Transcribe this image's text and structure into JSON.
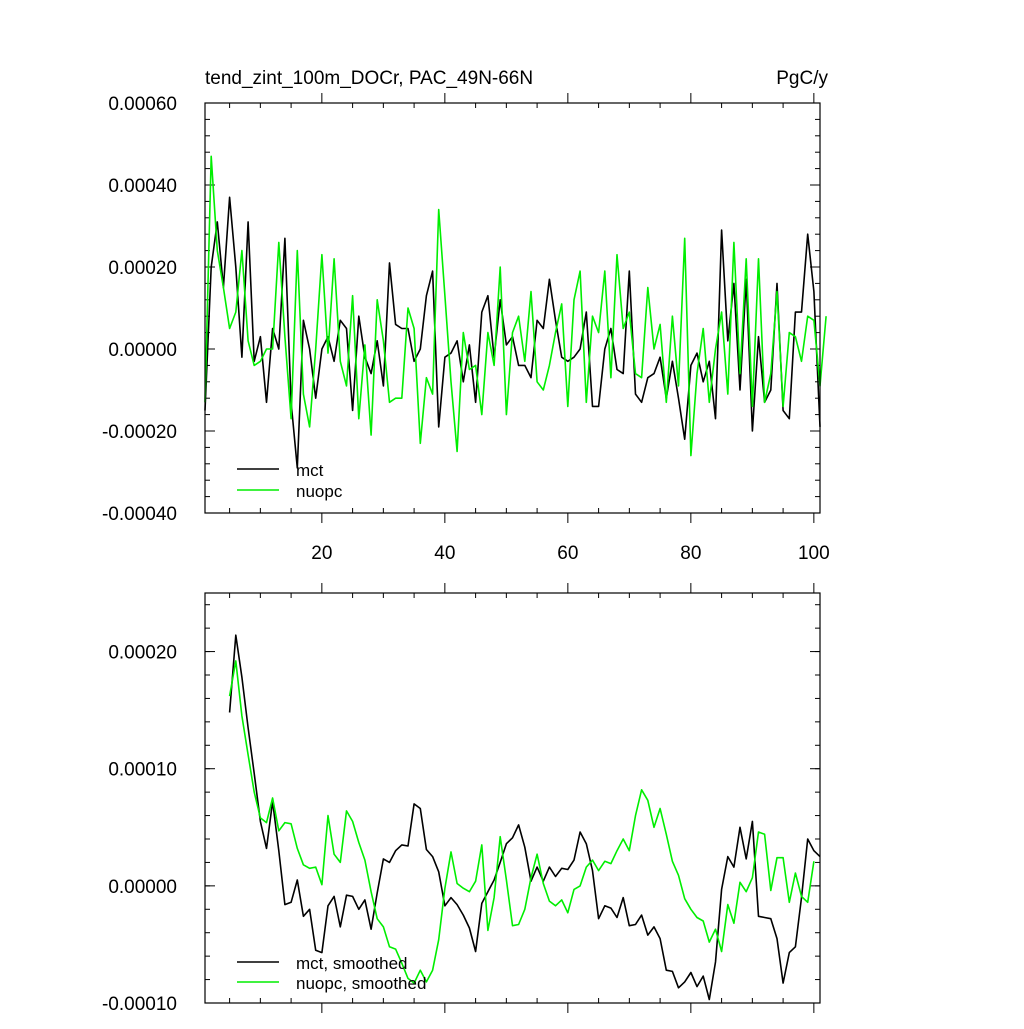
{
  "chart_data": [
    {
      "type": "line",
      "title": "tend_zint_100m_DOCr, PAC_49N-66N",
      "units": "PgC/y",
      "xlabel": "",
      "ylabel": "",
      "xlim": [
        1,
        101
      ],
      "ylim": [
        -0.0004,
        0.0006
      ],
      "x_ticks": [
        20,
        40,
        60,
        80,
        100
      ],
      "x_tick_labels": [
        "20",
        "40",
        "60",
        "80",
        "100"
      ],
      "y_ticks": [
        -0.0004,
        -0.0002,
        0.0,
        0.0002,
        0.0004,
        0.0006
      ],
      "y_tick_labels": [
        "-0.00040",
        "-0.00020",
        "0.00000",
        "0.00020",
        "0.00040",
        "0.00060"
      ],
      "grid": false,
      "legend_position": "bottom-left",
      "x_start": 1,
      "series": [
        {
          "name": "mct",
          "color": "#000000",
          "values": [
            -0.00015,
            0.0002,
            0.00031,
            0.00015,
            0.00037,
            0.0002,
            -2e-05,
            0.00031,
            -3e-05,
            3e-05,
            -0.00013,
            5e-05,
            0.0,
            0.00027,
            -0.00013,
            -0.00029,
            7e-05,
            0.0,
            -0.00012,
            0.0,
            3e-05,
            -3e-05,
            7e-05,
            5e-05,
            -0.00015,
            8e-05,
            -2e-05,
            -6e-05,
            2e-05,
            -9e-05,
            0.00021,
            6e-05,
            5e-05,
            5e-05,
            -3e-05,
            0.0,
            0.00013,
            0.00019,
            -0.00019,
            -2e-05,
            -1e-05,
            2e-05,
            -8e-05,
            1e-05,
            -0.00013,
            9e-05,
            0.00013,
            -2e-05,
            0.00012,
            1e-05,
            3e-05,
            -4e-05,
            -4e-05,
            -7e-05,
            7e-05,
            5e-05,
            0.00017,
            7e-05,
            -2e-05,
            -3e-05,
            -2e-05,
            0.0,
            9e-05,
            -0.00014,
            -0.00014,
            0.0,
            5e-05,
            -5e-05,
            -6e-05,
            0.00019,
            -0.00011,
            -0.00013,
            -7e-05,
            -6e-05,
            -2e-05,
            -0.00012,
            -3e-05,
            -0.00012,
            -0.00022,
            -4e-05,
            -1e-05,
            -8e-05,
            -3e-05,
            -0.00017,
            0.00029,
            2e-05,
            0.00016,
            -0.0001,
            0.00017,
            -0.0002,
            3e-05,
            -0.00013,
            -0.0001,
            0.00016,
            -0.00015,
            -0.00017,
            9e-05,
            9e-05,
            0.00028,
            0.00014,
            -0.00019
          ]
        },
        {
          "name": "nuopc",
          "color": "#00ee00",
          "values": [
            -0.00013,
            0.00047,
            0.00024,
            0.00015,
            5e-05,
            9e-05,
            0.00024,
            2e-05,
            -4e-05,
            -3e-05,
            0.0,
            0.0,
            0.00026,
            3e-05,
            -0.00017,
            0.00024,
            -0.00011,
            -0.00019,
            0.0,
            0.00023,
            -1e-05,
            0.00022,
            -3e-05,
            -9e-05,
            0.00013,
            -0.00017,
            1e-05,
            -0.00021,
            0.00012,
            2e-05,
            -0.00013,
            -0.00012,
            -0.00012,
            0.0001,
            5e-05,
            -0.00023,
            -7e-05,
            -0.00011,
            0.00034,
            0.00013,
            -8e-05,
            -0.00025,
            4e-05,
            -5e-05,
            -4e-05,
            -0.00016,
            4e-05,
            -4e-05,
            0.0002,
            -0.00016,
            4e-05,
            8e-05,
            -3e-05,
            0.00014,
            -8e-05,
            -0.0001,
            -4e-05,
            4e-05,
            0.00011,
            -0.00014,
            0.00012,
            0.00019,
            -0.00013,
            8e-05,
            4e-05,
            0.00019,
            -7e-05,
            0.00023,
            5e-05,
            9e-05,
            -6e-05,
            -7e-05,
            0.00015,
            0.0,
            6e-05,
            -0.00013,
            8e-05,
            -9e-05,
            0.00027,
            -0.00026,
            -6e-05,
            5e-05,
            -0.00013,
            0.0,
            9e-05,
            -0.00011,
            0.00026,
            -6e-05,
            0.00022,
            -0.00014,
            0.00022,
            -0.00013,
            -6e-05,
            0.00014,
            -0.00014,
            4e-05,
            3e-05,
            -3e-05,
            8e-05,
            7e-05,
            -9e-05,
            8e-05
          ]
        }
      ]
    },
    {
      "type": "line",
      "title": "",
      "xlabel": "",
      "ylabel": "",
      "xlim": [
        1,
        101
      ],
      "ylim": [
        -0.0001,
        0.00025
      ],
      "x_ticks": [
        20,
        40,
        60,
        80,
        100
      ],
      "x_tick_labels": [],
      "y_ticks": [
        -0.0001,
        0.0,
        0.0001,
        0.0002
      ],
      "y_tick_labels": [
        "-0.00010",
        "0.00000",
        "0.00010",
        "0.00020"
      ],
      "grid": false,
      "legend_position": "bottom-left",
      "x_start": 5,
      "series": [
        {
          "name": "mct, smoothed",
          "color": "#000000",
          "values": [
            0.000148,
            0.000214,
            0.000178,
            0.000135,
            9.6e-05,
            5.5e-05,
            3.2e-05,
            7.2e-05,
            3e-05,
            -1.6e-05,
            -1.4e-05,
            5e-06,
            -2.6e-05,
            -2e-05,
            -5.5e-05,
            -5.7e-05,
            -1.7e-05,
            -9e-06,
            -3.5e-05,
            -8e-06,
            -9e-06,
            -2e-05,
            -1.2e-05,
            -3.7e-05,
            -6e-06,
            2.3e-05,
            2e-05,
            3e-05,
            3.5e-05,
            3.4e-05,
            7e-05,
            6.6e-05,
            3.1e-05,
            2.5e-05,
            1.2e-05,
            -1.7e-05,
            -1e-05,
            -1.6e-05,
            -2.5e-05,
            -3.6e-05,
            -5.6e-05,
            -1.5e-05,
            -5e-06,
            5e-06,
            2e-05,
            3.6e-05,
            4.1e-05,
            5.2e-05,
            3.3e-05,
            4e-06,
            1.6e-05,
            4e-06,
            1.6e-05,
            8e-06,
            1.5e-05,
            1.4e-05,
            2.2e-05,
            4.6e-05,
            3.6e-05,
            1.3e-05,
            -2.8e-05,
            -1.7e-05,
            -1.9e-05,
            -2.7e-05,
            -1e-05,
            -3.4e-05,
            -3.3e-05,
            -2.5e-05,
            -4.2e-05,
            -3.5e-05,
            -4.5e-05,
            -7.2e-05,
            -7.3e-05,
            -8.7e-05,
            -8.2e-05,
            -7.4e-05,
            -8.6e-05,
            -7.7e-05,
            -9.7e-05,
            -6.5e-05,
            -3e-06,
            2.5e-05,
            1.6e-05,
            5e-05,
            2.3e-05,
            5.5e-05,
            -2.6e-05,
            -2.7e-05,
            -2.8e-05,
            -4.5e-05,
            -8.3e-05,
            -5.7e-05,
            -5.2e-05,
            -1e-05,
            4e-05,
            3e-05,
            2.5e-05
          ]
        },
        {
          "name": "nuopc, smoothed",
          "color": "#00ee00",
          "values": [
            0.000162,
            0.000192,
            0.000145,
            0.000112,
            8e-05,
            5.8e-05,
            5.4e-05,
            7.5e-05,
            4.7e-05,
            5.4e-05,
            5.3e-05,
            3.2e-05,
            1.8e-05,
            1.5e-05,
            1.6e-05,
            1e-06,
            6e-05,
            2.7e-05,
            2e-05,
            6.4e-05,
            5.5e-05,
            3.7e-05,
            2.2e-05,
            -5e-06,
            -2.8e-05,
            -3.5e-05,
            -5.2e-05,
            -5.4e-05,
            -6.6e-05,
            -7.9e-05,
            -8.3e-05,
            -7.2e-05,
            -8.2e-05,
            -7.2e-05,
            -4.6e-05,
            -2e-06,
            2.9e-05,
            2e-06,
            -2e-06,
            -5e-06,
            4e-06,
            3.5e-05,
            -3.8e-05,
            -1e-05,
            4.2e-05,
            5e-06,
            -3.4e-05,
            -3.3e-05,
            -2e-05,
            7e-06,
            2.7e-05,
            2e-06,
            -1.3e-05,
            -1.7e-05,
            -1.2e-05,
            -2.3e-05,
            -3e-06,
            0.0,
            1.6e-05,
            2.2e-05,
            1.3e-05,
            2.1e-05,
            1.9e-05,
            3e-05,
            4e-05,
            3e-05,
            6e-05,
            8.2e-05,
            7.3e-05,
            5e-05,
            6.6e-05,
            4.4e-05,
            2.1e-05,
            9e-06,
            -1.1e-05,
            -2e-05,
            -2.7e-05,
            -3e-05,
            -4.8e-05,
            -3.7e-05,
            -5.6e-05,
            -1.6e-05,
            -3.2e-05,
            3e-06,
            -5e-06,
            7e-06,
            4.6e-05,
            4.4e-05,
            -4e-06,
            2.4e-05,
            2.4e-05,
            -1.4e-05,
            1.1e-05,
            -9e-06,
            -1.4e-05,
            2.1e-05
          ]
        }
      ]
    }
  ]
}
